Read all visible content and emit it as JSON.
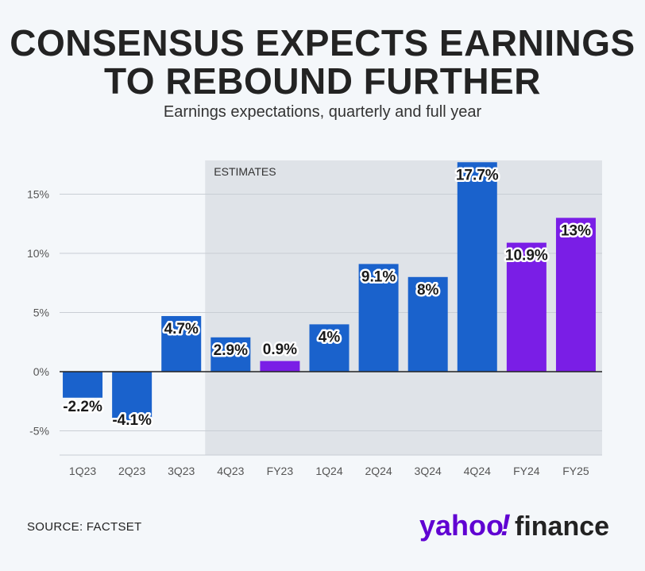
{
  "header": {
    "title": "CONSENSUS EXPECTS EARNINGS\nTO REBOUND FURTHER",
    "subtitle": "Earnings expectations, quarterly and full year"
  },
  "footer": {
    "source": "SOURCE: FACTSET",
    "logo": {
      "left": "yahoo",
      "mark": "!",
      "right": "finance"
    }
  },
  "colors": {
    "quarterly": "#1a62cc",
    "full_year": "#7a1ee6",
    "shade": "#dfe3e8",
    "grid": "#c9ced4",
    "zero_line": "#222222",
    "logo": "#6001d2",
    "logo_text": "#222222"
  },
  "chart_data": {
    "type": "bar",
    "categories": [
      "1Q23",
      "2Q23",
      "3Q23",
      "4Q23",
      "FY23",
      "1Q24",
      "2Q24",
      "3Q24",
      "4Q24",
      "FY24",
      "FY25"
    ],
    "values": [
      -2.2,
      -4.1,
      4.7,
      2.9,
      0.9,
      4,
      9.1,
      8,
      17.7,
      10.9,
      13
    ],
    "data_labels": [
      "-2.2%",
      "-4.1%",
      "4.7%",
      "2.9%",
      "0.9%",
      "4%",
      "9.1%",
      "8%",
      "17.7%",
      "10.9%",
      "13%"
    ],
    "bar_kind": [
      "quarterly",
      "quarterly",
      "quarterly",
      "quarterly",
      "full_year",
      "quarterly",
      "quarterly",
      "quarterly",
      "quarterly",
      "full_year",
      "full_year"
    ],
    "y_ticks": [
      -5,
      0,
      5,
      10,
      15
    ],
    "y_tick_labels": [
      "-5%",
      "0%",
      "5%",
      "10%",
      "15%"
    ],
    "ylim": [
      -7,
      18
    ],
    "shaded_region": {
      "label": "ESTIMATES",
      "from_category": "4Q23",
      "to_category": "FY25"
    },
    "grid": true
  }
}
